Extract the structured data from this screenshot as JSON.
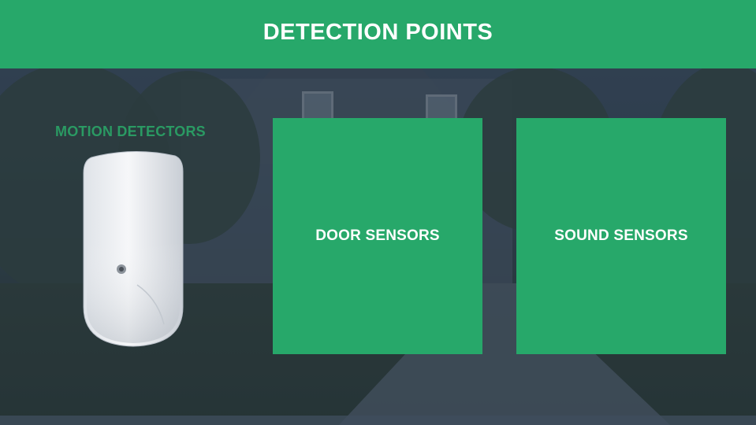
{
  "header": {
    "title": "DETECTION POINTS"
  },
  "motion": {
    "label": "MOTION DETECTORS",
    "image_icon": "motion-detector-icon"
  },
  "tiles": [
    {
      "label": "DOOR SENSORS"
    },
    {
      "label": "SOUND SENSORS"
    }
  ],
  "colors": {
    "accent": "#27a86a",
    "motion_label": "#2a9a63",
    "text_on_accent": "#ffffff"
  }
}
